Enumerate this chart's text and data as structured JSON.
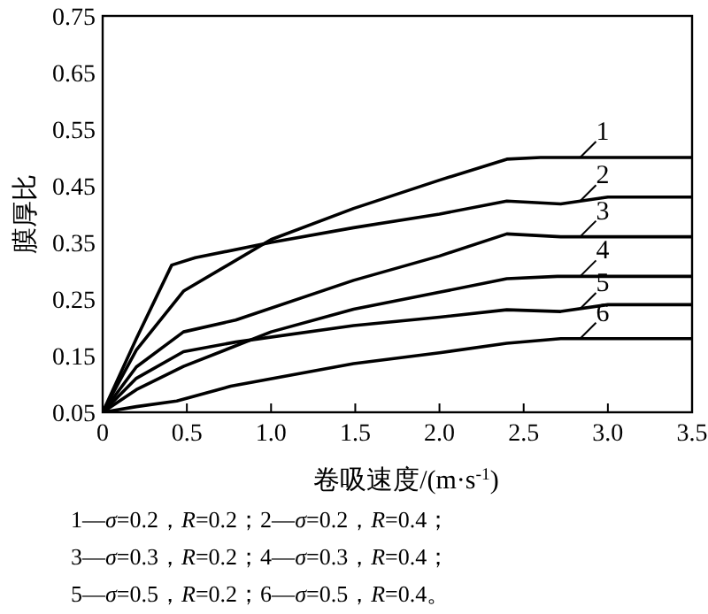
{
  "chart_data": {
    "type": "line",
    "xlabel": "卷吸速度/(m·s$^{-1}$)",
    "ylabel": "膜厚比",
    "xlim": [
      0,
      3.5
    ],
    "ylim": [
      0.05,
      0.75
    ],
    "xticks": [
      0,
      0.5,
      {
        "value": 1,
        "label": "1.0"
      },
      1.5,
      {
        "value": 2,
        "label": "2.0"
      },
      2.5,
      {
        "value": 3,
        "label": "3.0"
      },
      3.5
    ],
    "yticks": [
      0.05,
      0.15,
      0.25,
      0.35,
      0.45,
      0.55,
      0.65,
      0.75
    ],
    "grid": false,
    "legend": "right",
    "marker": "none",
    "line_style": "solid",
    "series": [
      {
        "name": "1",
        "color": "#000000",
        "x": [
          0,
          0.2,
          0.48,
          1.0,
          1.49,
          2.0,
          2.4,
          2.6,
          3.5
        ],
        "values": [
          0.05,
          0.16,
          0.264,
          0.355,
          0.41,
          0.46,
          0.497,
          0.5,
          0.5
        ]
      },
      {
        "name": "2",
        "color": "#000000",
        "x": [
          0,
          0.2,
          0.41,
          0.55,
          1.0,
          1.49,
          2.0,
          2.4,
          2.72,
          3.0,
          3.5
        ],
        "values": [
          0.05,
          0.18,
          0.31,
          0.323,
          0.35,
          0.376,
          0.4,
          0.423,
          0.418,
          0.43,
          0.43
        ]
      },
      {
        "name": "3",
        "color": "#000000",
        "x": [
          0,
          0.2,
          0.48,
          0.79,
          1.49,
          2.0,
          2.4,
          2.72,
          3.5
        ],
        "values": [
          0.05,
          0.13,
          0.192,
          0.213,
          0.283,
          0.326,
          0.365,
          0.36,
          0.36
        ]
      },
      {
        "name": "4",
        "color": "#000000",
        "x": [
          0,
          0.2,
          0.48,
          1.0,
          1.49,
          2.0,
          2.4,
          2.7,
          3.5
        ],
        "values": [
          0.05,
          0.09,
          0.131,
          0.192,
          0.232,
          0.262,
          0.286,
          0.29,
          0.29
        ]
      },
      {
        "name": "5",
        "color": "#000000",
        "x": [
          0,
          0.2,
          0.48,
          0.79,
          1.49,
          2.0,
          2.4,
          2.72,
          3.0,
          3.5
        ],
        "values": [
          0.05,
          0.11,
          0.157,
          0.174,
          0.203,
          0.218,
          0.231,
          0.228,
          0.24,
          0.24
        ]
      },
      {
        "name": "6",
        "color": "#000000",
        "x": [
          0,
          0.2,
          0.44,
          0.76,
          1.49,
          2.0,
          2.4,
          2.72,
          3.5
        ],
        "values": [
          0.05,
          0.06,
          0.07,
          0.096,
          0.136,
          0.155,
          0.172,
          0.18,
          0.18
        ]
      }
    ],
    "annotations": [
      "1—*σ*=0.2，*R*=0.2；2—*σ*=0.2，*R*=0.4；",
      "3—*σ*=0.3，*R*=0.2；4—*σ*=0.3，*R*=0.4；",
      "5—*σ*=0.5，*R*=0.2；6—*σ*=0.5，*R*=0.4。"
    ]
  }
}
